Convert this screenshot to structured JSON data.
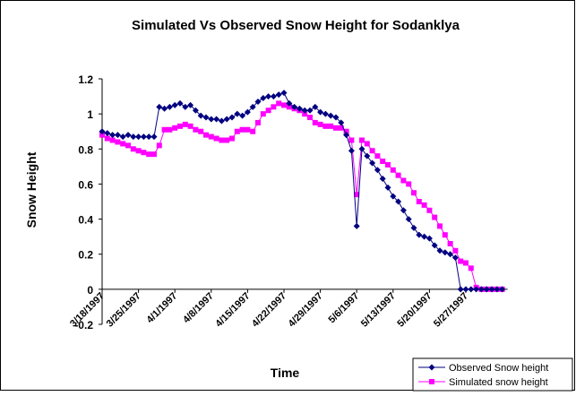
{
  "chart_data": {
    "type": "line",
    "title": "Simulated Vs Observed Snow  Height for Sodanklya",
    "x_label": "Time",
    "y_label": "Snow Height",
    "categories": [
      "3/18/1997",
      null,
      null,
      null,
      null,
      null,
      null,
      "3/25/1997",
      null,
      null,
      null,
      null,
      null,
      null,
      "4/1/1997",
      null,
      null,
      null,
      null,
      null,
      null,
      "4/8/1997",
      null,
      null,
      null,
      null,
      null,
      null,
      "4/15/1997",
      null,
      null,
      null,
      null,
      null,
      null,
      "4/22/1997",
      null,
      null,
      null,
      null,
      null,
      null,
      "4/29/1997",
      null,
      null,
      null,
      null,
      null,
      null,
      "5/6/1997",
      null,
      null,
      null,
      null,
      null,
      null,
      "5/13/1997",
      null,
      null,
      null,
      null,
      null,
      null,
      "5/20/1997",
      null,
      null,
      null,
      null,
      null,
      null,
      "5/27/1997",
      null,
      null,
      null,
      null,
      null,
      null,
      null
    ],
    "series": [
      {
        "name": "Observed Snow  height",
        "color": "#000080",
        "marker": "diamond",
        "values": [
          0.9,
          0.89,
          0.88,
          0.88,
          0.87,
          0.88,
          0.87,
          0.87,
          0.87,
          0.87,
          0.87,
          1.04,
          1.03,
          1.04,
          1.05,
          1.06,
          1.04,
          1.05,
          1.02,
          0.99,
          0.98,
          0.97,
          0.97,
          0.96,
          0.97,
          0.98,
          1.0,
          0.99,
          1.01,
          1.04,
          1.07,
          1.09,
          1.1,
          1.1,
          1.11,
          1.12,
          1.06,
          1.04,
          1.03,
          1.02,
          1.02,
          1.04,
          1.01,
          1.0,
          0.99,
          0.98,
          0.95,
          0.88,
          0.79,
          0.36,
          0.8,
          0.76,
          0.72,
          0.68,
          0.63,
          0.58,
          0.53,
          0.5,
          0.45,
          0.4,
          0.35,
          0.31,
          0.3,
          0.29,
          0.25,
          0.22,
          0.21,
          0.2,
          0.18,
          0.0,
          0.0,
          0.0,
          0.0,
          0.0,
          0.0,
          0.0,
          0.0,
          0.0
        ]
      },
      {
        "name": "Simulated snow  height",
        "color": "#ff00ff",
        "marker": "square",
        "values": [
          0.88,
          0.86,
          0.85,
          0.84,
          0.83,
          0.82,
          0.8,
          0.79,
          0.78,
          0.77,
          0.77,
          0.82,
          0.91,
          0.91,
          0.92,
          0.93,
          0.94,
          0.93,
          0.91,
          0.9,
          0.88,
          0.87,
          0.86,
          0.85,
          0.85,
          0.86,
          0.9,
          0.91,
          0.91,
          0.9,
          0.95,
          1.0,
          1.02,
          1.04,
          1.06,
          1.05,
          1.04,
          1.03,
          1.02,
          1.0,
          0.98,
          0.95,
          0.94,
          0.93,
          0.93,
          0.92,
          0.92,
          0.9,
          0.85,
          0.54,
          0.85,
          0.83,
          0.79,
          0.76,
          0.73,
          0.71,
          0.68,
          0.65,
          0.62,
          0.6,
          0.55,
          0.5,
          0.48,
          0.45,
          0.41,
          0.36,
          0.31,
          0.26,
          0.22,
          0.16,
          0.15,
          0.12,
          0.01,
          0.0,
          0.0,
          0.0,
          0.0,
          0.0
        ]
      }
    ],
    "ylim": [
      -0.2,
      1.2
    ],
    "yticks": [
      -0.2,
      0,
      0.2,
      0.4,
      0.6,
      0.8,
      1,
      1.2
    ],
    "grid": false,
    "legend": "bottom-right"
  }
}
